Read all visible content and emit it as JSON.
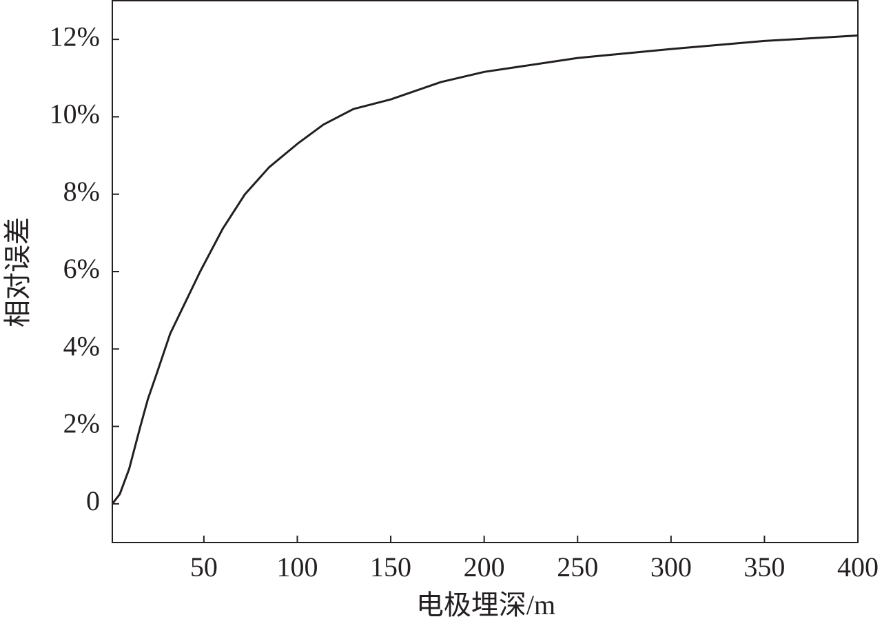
{
  "chart_data": {
    "type": "line",
    "x_label": "电极埋深/m",
    "y_label": "相对误差",
    "xlim": [
      1,
      400
    ],
    "xticks": [
      50,
      100,
      150,
      200,
      250,
      300,
      350,
      400
    ],
    "ylim": [
      -1,
      13
    ],
    "yticks": [
      0,
      {
        "value": 2,
        "label": "2%"
      },
      {
        "value": 4,
        "label": "4%"
      },
      {
        "value": 6,
        "label": "6%"
      },
      {
        "value": 8,
        "label": "8%"
      },
      {
        "value": 10,
        "label": "10%"
      },
      {
        "value": 12,
        "label": "12%"
      }
    ],
    "x": [
      1,
      5,
      10,
      16,
      20,
      25,
      32,
      40,
      48,
      60,
      72,
      85,
      100,
      114,
      130,
      150,
      177,
      200,
      250,
      300,
      350,
      400
    ],
    "series": [
      {
        "color": "#231f20",
        "values": [
          0,
          0.25,
          0.9,
          2.0,
          2.7,
          3.4,
          4.4,
          5.2,
          6.0,
          7.1,
          8.0,
          8.7,
          9.3,
          9.8,
          10.2,
          10.45,
          10.9,
          11.16,
          11.52,
          11.75,
          11.96,
          12.1
        ]
      }
    ]
  }
}
